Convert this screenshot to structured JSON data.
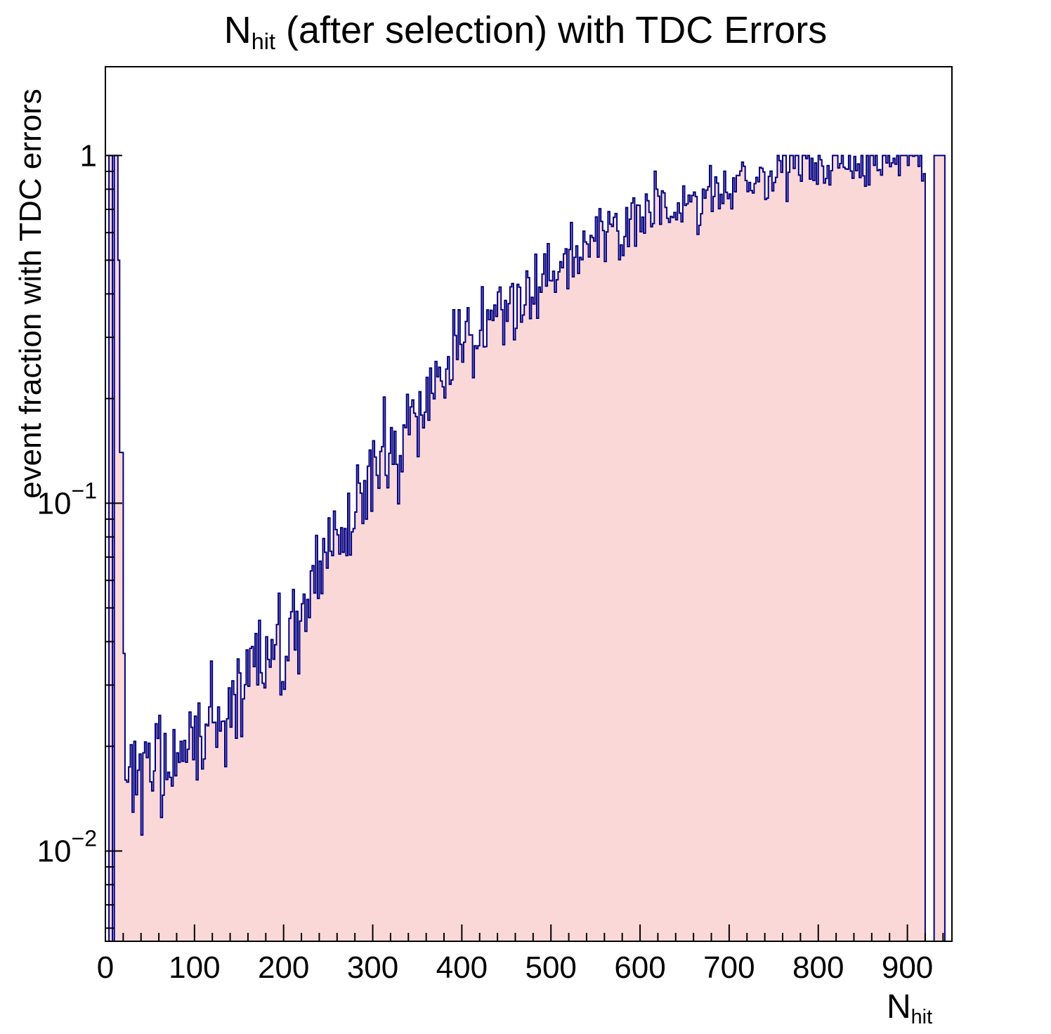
{
  "title": {
    "n": "N",
    "sub": "hit",
    "rest": " (after selection) with TDC Errors"
  },
  "y_axis": {
    "title": "event fraction with TDC errors"
  },
  "x_axis": {
    "title_base": "N",
    "title_sub": "hit"
  },
  "chart_data": {
    "type": "bar",
    "style": "filled-step-histogram",
    "title": "N_hit (after selection) with TDC Errors",
    "xlabel": "N_hit",
    "ylabel": "event fraction with TDC errors",
    "y_scale": "log",
    "x_range": [
      0,
      950
    ],
    "y_range": [
      0.0055,
      1.8
    ],
    "bin_width": 2,
    "grid": false,
    "legend": "none",
    "fill_color": "#fbd8d8",
    "line_color": "#000080",
    "frame_color": "#000000",
    "x_ticks": [
      0,
      100,
      200,
      300,
      400,
      500,
      600,
      700,
      800,
      900
    ],
    "x_minor_step": 20,
    "y_ticks": [
      {
        "value": 0.01,
        "base": "10",
        "exp": "−2"
      },
      {
        "value": 0.1,
        "base": "10",
        "exp": "−1"
      },
      {
        "value": 1,
        "base": "1",
        "exp": ""
      }
    ],
    "head_bins": [
      [
        0,
        4,
        0
      ],
      [
        4,
        8,
        1.0
      ],
      [
        8,
        10,
        0
      ],
      [
        10,
        14,
        1.0
      ],
      [
        14,
        16,
        0.5
      ],
      [
        16,
        20,
        0.14
      ],
      [
        20,
        22,
        0.037
      ],
      [
        22,
        24,
        0.016
      ]
    ],
    "zero_spans": [
      [
        920,
        930
      ],
      [
        942,
        950
      ]
    ],
    "full_spans": [
      [
        930,
        942,
        1.0
      ]
    ],
    "trend_points": [
      [
        24,
        0.0155
      ],
      [
        40,
        0.017
      ],
      [
        60,
        0.018
      ],
      [
        80,
        0.019
      ],
      [
        100,
        0.021
      ],
      [
        120,
        0.023
      ],
      [
        140,
        0.027
      ],
      [
        160,
        0.031
      ],
      [
        180,
        0.035
      ],
      [
        200,
        0.042
      ],
      [
        220,
        0.05
      ],
      [
        240,
        0.06
      ],
      [
        260,
        0.075
      ],
      [
        280,
        0.1
      ],
      [
        300,
        0.115
      ],
      [
        320,
        0.14
      ],
      [
        340,
        0.165
      ],
      [
        360,
        0.19
      ],
      [
        380,
        0.23
      ],
      [
        400,
        0.27
      ],
      [
        420,
        0.3
      ],
      [
        440,
        0.33
      ],
      [
        460,
        0.37
      ],
      [
        480,
        0.42
      ],
      [
        500,
        0.46
      ],
      [
        520,
        0.5
      ],
      [
        540,
        0.55
      ],
      [
        560,
        0.58
      ],
      [
        580,
        0.62
      ],
      [
        600,
        0.65
      ],
      [
        620,
        0.68
      ],
      [
        640,
        0.71
      ],
      [
        660,
        0.74
      ],
      [
        680,
        0.77
      ],
      [
        700,
        0.8
      ],
      [
        720,
        0.82
      ],
      [
        740,
        0.84
      ],
      [
        760,
        0.86
      ],
      [
        780,
        0.88
      ],
      [
        800,
        0.9
      ],
      [
        820,
        0.91
      ],
      [
        840,
        0.92
      ],
      [
        860,
        0.93
      ],
      [
        880,
        0.94
      ],
      [
        900,
        0.95
      ],
      [
        920,
        0.96
      ]
    ],
    "noise_sigma_ln": 0.18,
    "seed": 20231107
  }
}
